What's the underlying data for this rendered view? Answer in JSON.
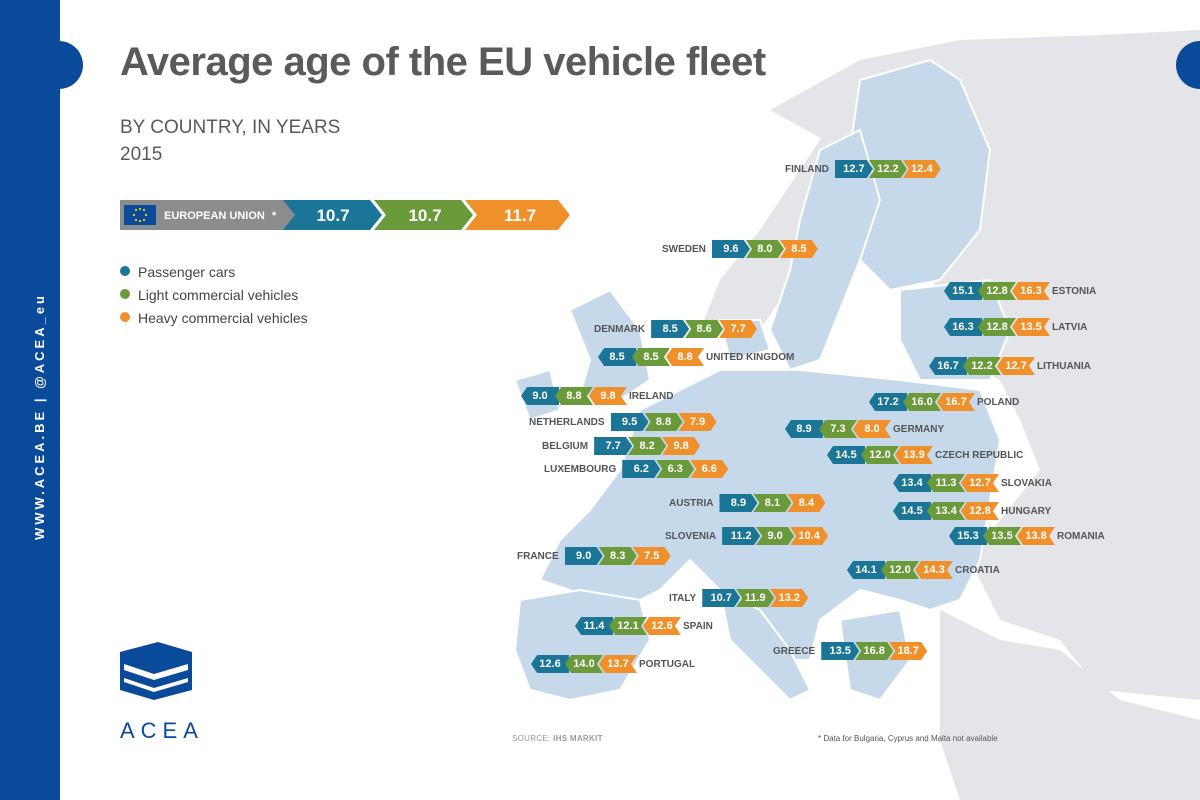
{
  "sidebar": {
    "text": "WWW.ACEA.BE | @ACEA_eu"
  },
  "header": {
    "title": "Average age of the EU vehicle fleet",
    "subtitle": "BY COUNTRY, IN YEARS",
    "year": "2015"
  },
  "eu": {
    "label": "EUROPEAN UNION",
    "asterisk": "*",
    "values": [
      "10.7",
      "10.7",
      "11.7"
    ]
  },
  "legend": [
    {
      "label": "Passenger cars",
      "color": "#1a7596"
    },
    {
      "label": "Light commercial vehicles",
      "color": "#6a9a3a"
    },
    {
      "label": "Heavy commercial vehicles",
      "color": "#f0902a"
    }
  ],
  "colors": {
    "sidebar": "#0a4a9a",
    "pc": "#1a7596",
    "lcv": "#6a9a3a",
    "hcv": "#f0902a",
    "land": "#c5d9ea",
    "landOther": "#e3e5e8"
  },
  "countries": [
    {
      "name": "FINLAND",
      "pc": "12.7",
      "lcv": "12.2",
      "hcv": "12.4"
    },
    {
      "name": "SWEDEN",
      "pc": "9.6",
      "lcv": "8.0",
      "hcv": "8.5"
    },
    {
      "name": "ESTONIA",
      "pc": "15.1",
      "lcv": "12.8",
      "hcv": "16.3"
    },
    {
      "name": "LATVIA",
      "pc": "16.3",
      "lcv": "12.8",
      "hcv": "13.5"
    },
    {
      "name": "DENMARK",
      "pc": "8.5",
      "lcv": "8.6",
      "hcv": "7.7"
    },
    {
      "name": "UNITED KINGDOM",
      "pc": "8.5",
      "lcv": "8.5",
      "hcv": "8.8"
    },
    {
      "name": "LITHUANIA",
      "pc": "16.7",
      "lcv": "12.2",
      "hcv": "12.7"
    },
    {
      "name": "IRELAND",
      "pc": "9.0",
      "lcv": "8.8",
      "hcv": "9.8"
    },
    {
      "name": "POLAND",
      "pc": "17.2",
      "lcv": "16.0",
      "hcv": "16.7"
    },
    {
      "name": "NETHERLANDS",
      "pc": "9.5",
      "lcv": "8.8",
      "hcv": "7.9"
    },
    {
      "name": "GERMANY",
      "pc": "8.9",
      "lcv": "7.3",
      "hcv": "8.0"
    },
    {
      "name": "BELGIUM",
      "pc": "7.7",
      "lcv": "8.2",
      "hcv": "9.8"
    },
    {
      "name": "CZECH REPUBLIC",
      "pc": "14.5",
      "lcv": "12.0",
      "hcv": "13.9"
    },
    {
      "name": "LUXEMBOURG",
      "pc": "6.2",
      "lcv": "6.3",
      "hcv": "6.6"
    },
    {
      "name": "SLOVAKIA",
      "pc": "13.4",
      "lcv": "11.3",
      "hcv": "12.7"
    },
    {
      "name": "AUSTRIA",
      "pc": "8.9",
      "lcv": "8.1",
      "hcv": "8.4"
    },
    {
      "name": "HUNGARY",
      "pc": "14.5",
      "lcv": "13.4",
      "hcv": "12.8"
    },
    {
      "name": "SLOVENIA",
      "pc": "11.2",
      "lcv": "9.0",
      "hcv": "10.4"
    },
    {
      "name": "ROMANIA",
      "pc": "15.3",
      "lcv": "13.5",
      "hcv": "13.8"
    },
    {
      "name": "FRANCE",
      "pc": "9.0",
      "lcv": "8.3",
      "hcv": "7.5"
    },
    {
      "name": "CROATIA",
      "pc": "14.1",
      "lcv": "12.0",
      "hcv": "14.3"
    },
    {
      "name": "ITALY",
      "pc": "10.7",
      "lcv": "11.9",
      "hcv": "13.2"
    },
    {
      "name": "SPAIN",
      "pc": "11.4",
      "lcv": "12.1",
      "hcv": "12.6"
    },
    {
      "name": "GREECE",
      "pc": "13.5",
      "lcv": "16.8",
      "hcv": "18.7"
    },
    {
      "name": "PORTUGAL",
      "pc": "12.6",
      "lcv": "14.0",
      "hcv": "13.7"
    }
  ],
  "footer": {
    "source_label": "SOURCE:",
    "source": "IHS MARKIT",
    "footnote": "* Data for Bulgaria, Cyprus and Malta not available",
    "logo": "ACEA"
  }
}
